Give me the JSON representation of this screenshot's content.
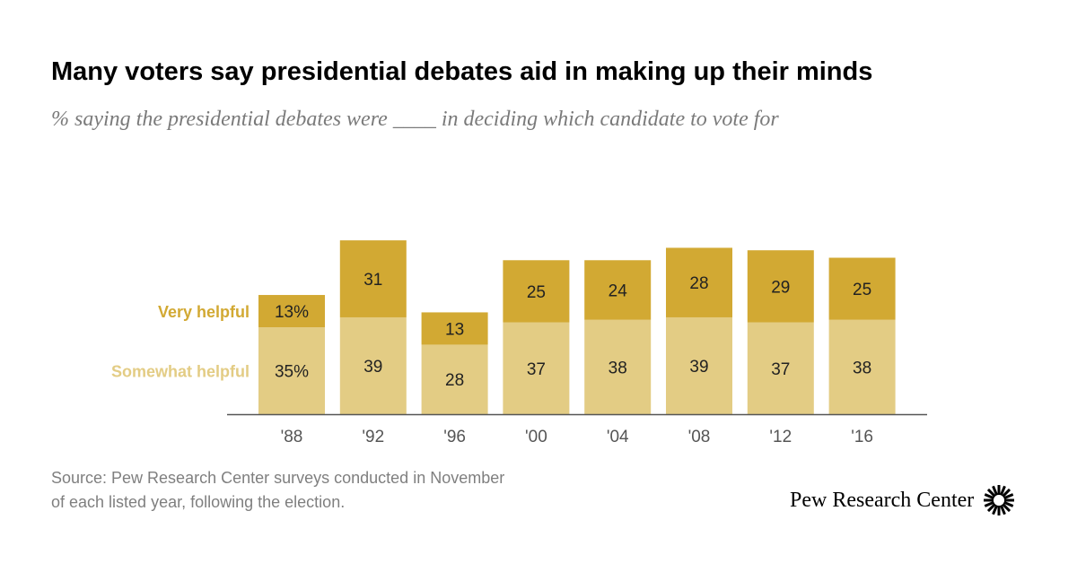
{
  "title": "Many voters say presidential debates aid in making up their minds",
  "subtitle": "% saying the presidential debates were ____ in deciding which candidate to vote for",
  "source_lines": [
    "Source: Pew Research Center surveys conducted in November",
    "of each listed year, following the election."
  ],
  "logo_text": "Pew Research Center",
  "colors": {
    "very_helpful": "#d2a933",
    "somewhat_helpful": "#e3cc84",
    "axis": "#555555",
    "tick_text": "#555555",
    "bar_text": "#222222"
  },
  "chart_data": {
    "type": "bar",
    "stacked": true,
    "categories": [
      "'88",
      "'92",
      "'96",
      "'00",
      "'04",
      "'08",
      "'12",
      "'16"
    ],
    "series": [
      {
        "name": "Somewhat helpful",
        "color": "#e3cc84",
        "values": [
          35,
          39,
          28,
          37,
          38,
          39,
          37,
          38
        ],
        "labels": [
          "35%",
          "39",
          "28",
          "37",
          "38",
          "39",
          "37",
          "38"
        ]
      },
      {
        "name": "Very helpful",
        "color": "#d2a933",
        "values": [
          13,
          31,
          13,
          25,
          24,
          28,
          29,
          25
        ],
        "labels": [
          "13%",
          "31",
          "13",
          "25",
          "24",
          "28",
          "29",
          "25"
        ]
      }
    ],
    "legend_placement": "left, beside first bar",
    "grid": false
  }
}
